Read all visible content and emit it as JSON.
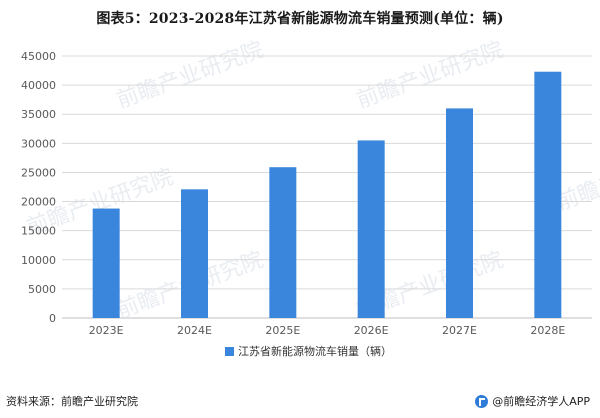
{
  "page": {
    "title": "图表5：2023-2028年江苏省新能源物流车销量预测(单位：辆)",
    "source": "资料来源：前瞻产业研究院",
    "brand": "@前瞻经济学人APP",
    "watermark": "前瞻产业研究院"
  },
  "colors": {
    "bar": "#3a86dc",
    "grid": "#d9d9d9",
    "axis_text": "#595959"
  },
  "chart_data": {
    "type": "bar",
    "categories": [
      "2023E",
      "2024E",
      "2025E",
      "2026E",
      "2027E",
      "2028E"
    ],
    "series": [
      {
        "name": "江苏省新能源物流车销量（辆）",
        "values": [
          18800,
          22100,
          25900,
          30500,
          36000,
          42300
        ]
      }
    ],
    "yticks": [
      0,
      5000,
      10000,
      15000,
      20000,
      25000,
      30000,
      35000,
      40000,
      45000
    ],
    "ylim": [
      0,
      45000
    ],
    "xlabel": "",
    "ylabel": "",
    "grid": true,
    "legend": "bottom-center"
  }
}
